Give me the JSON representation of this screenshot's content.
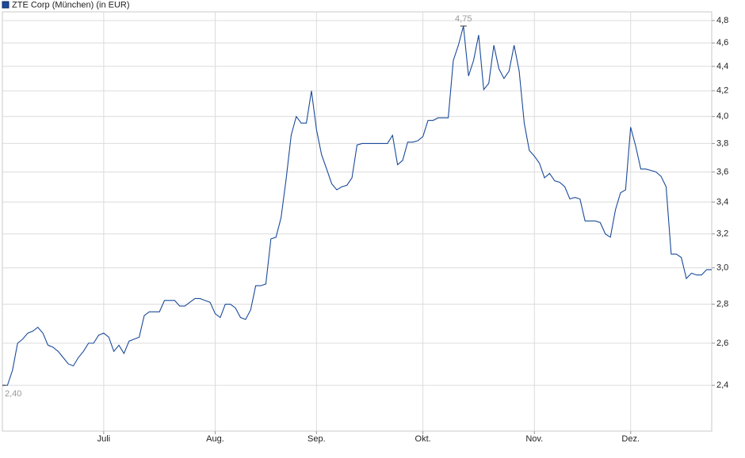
{
  "chart_data": {
    "type": "line",
    "log_scale": true,
    "grid": true,
    "legend": "top-left",
    "categories": [
      null,
      null,
      null,
      null,
      null,
      null,
      null,
      null,
      null,
      null,
      null,
      null,
      null,
      null,
      null,
      null,
      null,
      null,
      null,
      null,
      "Juli",
      null,
      null,
      null,
      null,
      null,
      null,
      null,
      null,
      null,
      null,
      null,
      null,
      null,
      null,
      null,
      null,
      null,
      null,
      null,
      null,
      null,
      "Aug.",
      null,
      null,
      null,
      null,
      null,
      null,
      null,
      null,
      null,
      null,
      null,
      null,
      null,
      null,
      null,
      null,
      null,
      null,
      null,
      "Sep.",
      null,
      null,
      null,
      null,
      null,
      null,
      null,
      null,
      null,
      null,
      null,
      null,
      null,
      null,
      null,
      null,
      null,
      null,
      null,
      null,
      "Okt.",
      null,
      null,
      null,
      null,
      null,
      null,
      null,
      null,
      null,
      null,
      null,
      null,
      null,
      null,
      null,
      null,
      null,
      null,
      null,
      null,
      null,
      "Nov.",
      null,
      null,
      null,
      null,
      null,
      null,
      null,
      null,
      null,
      null,
      null,
      null,
      null,
      null,
      null,
      null,
      null,
      null,
      "Dez.",
      null,
      null,
      null,
      null,
      null,
      null,
      null,
      null,
      null,
      null,
      null,
      null,
      null,
      null,
      null,
      null
    ],
    "series": [
      {
        "name": "ZTE Corp (München) (in EUR)",
        "color": "#1a4a9a",
        "values": [
          2.4,
          2.4,
          2.47,
          2.6,
          2.62,
          2.65,
          2.66,
          2.68,
          2.65,
          2.59,
          2.58,
          2.56,
          2.53,
          2.5,
          2.49,
          2.53,
          2.56,
          2.6,
          2.6,
          2.64,
          2.65,
          2.63,
          2.56,
          2.59,
          2.55,
          2.61,
          2.62,
          2.63,
          2.74,
          2.76,
          2.76,
          2.76,
          2.82,
          2.82,
          2.82,
          2.79,
          2.79,
          2.81,
          2.83,
          2.83,
          2.82,
          2.81,
          2.75,
          2.73,
          2.8,
          2.8,
          2.78,
          2.73,
          2.72,
          2.77,
          2.9,
          2.9,
          2.91,
          3.17,
          3.18,
          3.3,
          3.55,
          3.86,
          4.0,
          3.95,
          3.95,
          4.2,
          3.9,
          3.72,
          3.62,
          3.52,
          3.48,
          3.5,
          3.51,
          3.56,
          3.79,
          3.8,
          3.8,
          3.8,
          3.8,
          3.8,
          3.8,
          3.86,
          3.65,
          3.68,
          3.81,
          3.81,
          3.82,
          3.85,
          3.97,
          3.97,
          3.99,
          3.99,
          3.99,
          4.45,
          4.58,
          4.75,
          4.32,
          4.45,
          4.67,
          4.21,
          4.26,
          4.58,
          4.38,
          4.3,
          4.36,
          4.58,
          4.36,
          3.95,
          3.75,
          3.71,
          3.66,
          3.56,
          3.59,
          3.54,
          3.53,
          3.5,
          3.42,
          3.43,
          3.42,
          3.28,
          3.28,
          3.28,
          3.27,
          3.2,
          3.18,
          3.35,
          3.46,
          3.48,
          3.92,
          3.78,
          3.62,
          3.62,
          3.61,
          3.6,
          3.57,
          3.5,
          3.08,
          3.08,
          3.06,
          2.94,
          2.97,
          2.96,
          2.96,
          2.99,
          2.99
        ],
        "value_labels": [
          "2,40",
          null,
          null,
          null,
          null,
          null,
          null,
          null,
          null,
          null,
          null,
          null,
          null,
          null,
          null,
          null,
          null,
          null,
          null,
          null,
          null,
          null,
          null,
          null,
          null,
          null,
          null,
          null,
          null,
          null,
          null,
          null,
          null,
          null,
          null,
          null,
          null,
          null,
          null,
          null,
          null,
          null,
          null,
          null,
          null,
          null,
          null,
          null,
          null,
          null,
          null,
          null,
          null,
          null,
          null,
          null,
          null,
          null,
          null,
          null,
          null,
          null,
          null,
          null,
          null,
          null,
          null,
          null,
          null,
          null,
          null,
          null,
          null,
          null,
          null,
          null,
          null,
          null,
          null,
          null,
          null,
          null,
          null,
          null,
          null,
          null,
          null,
          null,
          null,
          null,
          null,
          "4,75",
          null,
          null,
          null,
          null,
          null,
          null,
          null,
          null,
          null,
          null,
          null,
          null,
          null,
          null,
          null,
          null,
          null,
          null,
          null,
          null,
          null,
          null,
          null,
          null,
          null,
          null,
          null,
          null,
          null,
          null,
          null,
          null,
          null,
          null,
          null,
          null,
          null,
          null,
          null,
          null,
          null,
          null,
          null,
          null,
          null,
          null,
          null,
          null,
          null
        ]
      }
    ],
    "ylim": [
      2.2,
      4.88
    ],
    "yticks": [
      {
        "value": 2.4,
        "label": "2,4"
      },
      {
        "value": 2.6,
        "label": "2,6"
      },
      {
        "value": 2.8,
        "label": "2,8"
      },
      {
        "value": 3.0,
        "label": "3,0"
      },
      {
        "value": 3.2,
        "label": "3,2"
      },
      {
        "value": 3.4,
        "label": "3,4"
      },
      {
        "value": 3.6,
        "label": "3,6"
      },
      {
        "value": 3.8,
        "label": "3,8"
      },
      {
        "value": 4.0,
        "label": "4,0"
      },
      {
        "value": 4.2,
        "label": "4,2"
      },
      {
        "value": 4.4,
        "label": "4,4"
      },
      {
        "value": 4.6,
        "label": "4,6"
      },
      {
        "value": 4.8,
        "label": "4,8"
      }
    ]
  }
}
